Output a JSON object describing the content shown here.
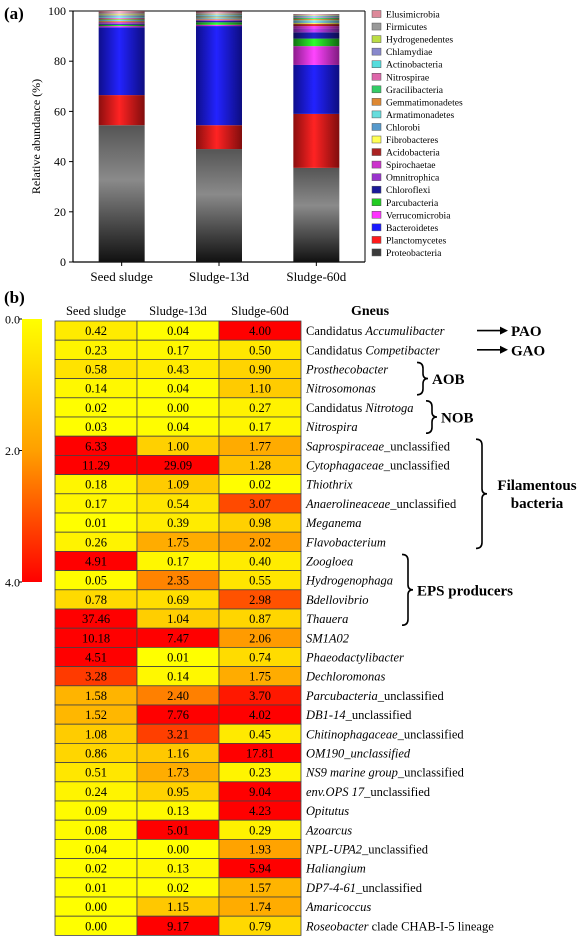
{
  "panel_a": {
    "label": "(a)",
    "chart_data": {
      "type": "bar",
      "stacked": true,
      "categories": [
        "Seed sludge",
        "Sludge-13d",
        "Sludge-60d"
      ],
      "ylabel": "Relative abundance (%)",
      "ylim": [
        0,
        100
      ],
      "yticks": [
        0,
        20,
        40,
        60,
        80,
        100
      ],
      "legend_placement": "right",
      "series": [
        {
          "name": "Proteobacteria",
          "color": "#3a3a3a",
          "values": [
            54.5,
            45.0,
            37.5
          ]
        },
        {
          "name": "Planctomycetes",
          "color": "#ff1a1a",
          "values": [
            12.0,
            9.5,
            21.5
          ]
        },
        {
          "name": "Bacteroidetes",
          "color": "#1a1aff",
          "values": [
            27.0,
            39.5,
            19.5
          ]
        },
        {
          "name": "Verrucomicrobia",
          "color": "#ff33ff",
          "values": [
            0.5,
            0.5,
            7.5
          ]
        },
        {
          "name": "Parcubacteria",
          "color": "#22cc22",
          "values": [
            0.5,
            1.0,
            3.0
          ]
        },
        {
          "name": "Chloroflexi",
          "color": "#1a1a99",
          "values": [
            0.4,
            0.5,
            2.5
          ]
        },
        {
          "name": "Omnitrophica",
          "color": "#9933cc",
          "values": [
            0.3,
            0.3,
            1.5
          ]
        },
        {
          "name": "Spirochaetae",
          "color": "#cc33cc",
          "values": [
            0.3,
            0.2,
            1.0
          ]
        },
        {
          "name": "Acidobacteria",
          "color": "#aa2222",
          "values": [
            0.3,
            0.2,
            0.8
          ]
        },
        {
          "name": "Fibrobacteres",
          "color": "#ffff55",
          "values": [
            0.2,
            0.2,
            0.5
          ]
        },
        {
          "name": "Chlorobi",
          "color": "#5599cc",
          "values": [
            0.2,
            0.3,
            0.5
          ]
        },
        {
          "name": "Armatimonadetes",
          "color": "#66dddd",
          "values": [
            0.2,
            0.2,
            0.5
          ]
        },
        {
          "name": "Gemmatimonadetes",
          "color": "#dd8833",
          "values": [
            0.2,
            0.2,
            0.5
          ]
        },
        {
          "name": "Gracilibacteria",
          "color": "#33cc66",
          "values": [
            0.2,
            0.2,
            0.4
          ]
        },
        {
          "name": "Nitrospirae",
          "color": "#dd66aa",
          "values": [
            0.5,
            0.2,
            0.3
          ]
        },
        {
          "name": "Actinobacteria",
          "color": "#55dddd",
          "values": [
            0.5,
            0.3,
            0.3
          ]
        },
        {
          "name": "Chlamydiae",
          "color": "#8888cc",
          "values": [
            0.5,
            0.3,
            0.3
          ]
        },
        {
          "name": "Hydrogenedentes",
          "color": "#bbdd44",
          "values": [
            0.4,
            0.2,
            0.2
          ]
        },
        {
          "name": "Firmicutes",
          "color": "#999999",
          "values": [
            0.4,
            0.3,
            0.2
          ]
        },
        {
          "name": "Elusimicrobia",
          "color": "#dd8899",
          "values": [
            0.9,
            0.7,
            0.3
          ]
        }
      ]
    }
  },
  "panel_b": {
    "label": "(b)",
    "chart_data": {
      "type": "heatmap",
      "columns": [
        "Seed sludge",
        "Sludge-13d",
        "Sludge-60d"
      ],
      "genus_header": "Gneus",
      "colorbar": {
        "ticks": [
          "0.0",
          "2.0",
          "4.0"
        ],
        "min": 0,
        "max": 4,
        "low_color": "#ffff00",
        "mid_color": "#ffa000",
        "high_color": "#ff0000"
      },
      "rows": [
        {
          "prefix": "Candidatus ",
          "name": "Accumulibacter",
          "suffix": "",
          "values": [
            "0.42",
            "0.04",
            "4.00"
          ]
        },
        {
          "prefix": "Candidatus ",
          "name": "Competibacter",
          "suffix": "",
          "values": [
            "0.23",
            "0.17",
            "0.50"
          ]
        },
        {
          "prefix": "",
          "name": "Prosthecobacter",
          "suffix": "",
          "values": [
            "0.58",
            "0.43",
            "0.90"
          ]
        },
        {
          "prefix": "",
          "name": "Nitrosomonas",
          "suffix": "",
          "values": [
            "0.14",
            "0.04",
            "1.10"
          ]
        },
        {
          "prefix": "Candidatus ",
          "name": "Nitrotoga",
          "suffix": "",
          "values": [
            "0.02",
            "0.00",
            "0.27"
          ]
        },
        {
          "prefix": "",
          "name": "Nitrospira",
          "suffix": "",
          "values": [
            "0.03",
            "0.04",
            "0.17"
          ]
        },
        {
          "prefix": "",
          "name": "Saprospiraceae",
          "suffix": "_unclassified",
          "values": [
            "6.33",
            "1.00",
            "1.77"
          ]
        },
        {
          "prefix": "",
          "name": "Cytophagaceae",
          "suffix": "_unclassified",
          "values": [
            "11.29",
            "29.09",
            "1.28"
          ]
        },
        {
          "prefix": "",
          "name": "Thiothrix",
          "suffix": "",
          "values": [
            "0.18",
            "1.09",
            "0.02"
          ]
        },
        {
          "prefix": "",
          "name": "Anaerolineaceae",
          "suffix": "_unclassified",
          "values": [
            "0.17",
            "0.54",
            "3.07"
          ]
        },
        {
          "prefix": "",
          "name": "Meganema",
          "suffix": "",
          "values": [
            "0.01",
            "0.39",
            "0.98"
          ]
        },
        {
          "prefix": "",
          "name": "Flavobacterium",
          "suffix": "",
          "values": [
            "0.26",
            "1.75",
            "2.02"
          ]
        },
        {
          "prefix": "",
          "name": "Zoogloea",
          "suffix": "",
          "values": [
            "4.91",
            "0.17",
            "0.40"
          ]
        },
        {
          "prefix": "",
          "name": "Hydrogenophaga",
          "suffix": "",
          "values": [
            "0.05",
            "2.35",
            "0.55"
          ]
        },
        {
          "prefix": "",
          "name": "Bdellovibrio",
          "suffix": "",
          "values": [
            "0.78",
            "0.69",
            "2.98"
          ]
        },
        {
          "prefix": "",
          "name": "Thauera",
          "suffix": "",
          "values": [
            "37.46",
            "1.04",
            "0.87"
          ]
        },
        {
          "prefix": "",
          "name": "SM1A02",
          "suffix": "",
          "values": [
            "10.18",
            "7.47",
            "2.06"
          ]
        },
        {
          "prefix": "",
          "name": "Phaeodactylibacter",
          "suffix": "",
          "values": [
            "4.51",
            "0.01",
            "0.74"
          ]
        },
        {
          "prefix": "",
          "name": "Dechloromonas",
          "suffix": "",
          "values": [
            "3.28",
            "0.14",
            "1.75"
          ]
        },
        {
          "prefix": "",
          "name": "Parcubacteria",
          "suffix": "_unclassified",
          "values": [
            "1.58",
            "2.40",
            "3.70"
          ]
        },
        {
          "prefix": "",
          "name": "DB1-14",
          "suffix": "_unclassified",
          "values": [
            "1.52",
            "7.76",
            "4.02"
          ]
        },
        {
          "prefix": "",
          "name": "Chitinophagaceae",
          "suffix": "_unclassified",
          "values": [
            "1.08",
            "3.21",
            "0.45"
          ]
        },
        {
          "prefix": "",
          "name": "OM190_unclassified",
          "suffix": "",
          "values": [
            "0.86",
            "1.16",
            "17.81"
          ]
        },
        {
          "prefix": "",
          "name": "NS9 marine group",
          "suffix": "_unclassified",
          "values": [
            "0.51",
            "1.73",
            "0.23"
          ]
        },
        {
          "prefix": "",
          "name": "env.OPS 17",
          "suffix": "_unclassified",
          "values": [
            "0.24",
            "0.95",
            "9.04"
          ]
        },
        {
          "prefix": "",
          "name": "Opitutus",
          "suffix": "",
          "values": [
            "0.09",
            "0.13",
            "4.23"
          ]
        },
        {
          "prefix": "",
          "name": "Azoarcus",
          "suffix": "",
          "values": [
            "0.08",
            "5.01",
            "0.29"
          ]
        },
        {
          "prefix": "",
          "name": "NPL-UPA2",
          "suffix": "_unclassified",
          "values": [
            "0.04",
            "0.00",
            "1.93"
          ]
        },
        {
          "prefix": "",
          "name": "Haliangium",
          "suffix": "",
          "values": [
            "0.02",
            "0.13",
            "5.94"
          ]
        },
        {
          "prefix": "",
          "name": "DP7-4-61",
          "suffix": "_unclassified",
          "values": [
            "0.01",
            "0.02",
            "1.57"
          ]
        },
        {
          "prefix": "",
          "name": "Amaricoccus",
          "suffix": "",
          "values": [
            "0.00",
            "1.15",
            "1.74"
          ]
        },
        {
          "prefix": "",
          "name": "Roseobacter",
          "suffix": " clade CHAB-I-5 lineage",
          "values": [
            "0.00",
            "9.17",
            "0.79"
          ]
        }
      ],
      "annotations": [
        {
          "text": "PAO",
          "kind": "arrow",
          "row_from": 0,
          "row_to": 0
        },
        {
          "text": "GAO",
          "kind": "arrow",
          "row_from": 1,
          "row_to": 1
        },
        {
          "text": "AOB",
          "kind": "brace",
          "row_from": 2,
          "row_to": 3
        },
        {
          "text": "NOB",
          "kind": "brace",
          "row_from": 4,
          "row_to": 5
        },
        {
          "text": "Filamentous bacteria",
          "kind": "brace",
          "row_from": 6,
          "row_to": 11
        },
        {
          "text": "EPS producers",
          "kind": "brace",
          "row_from": 12,
          "row_to": 15
        }
      ]
    }
  }
}
